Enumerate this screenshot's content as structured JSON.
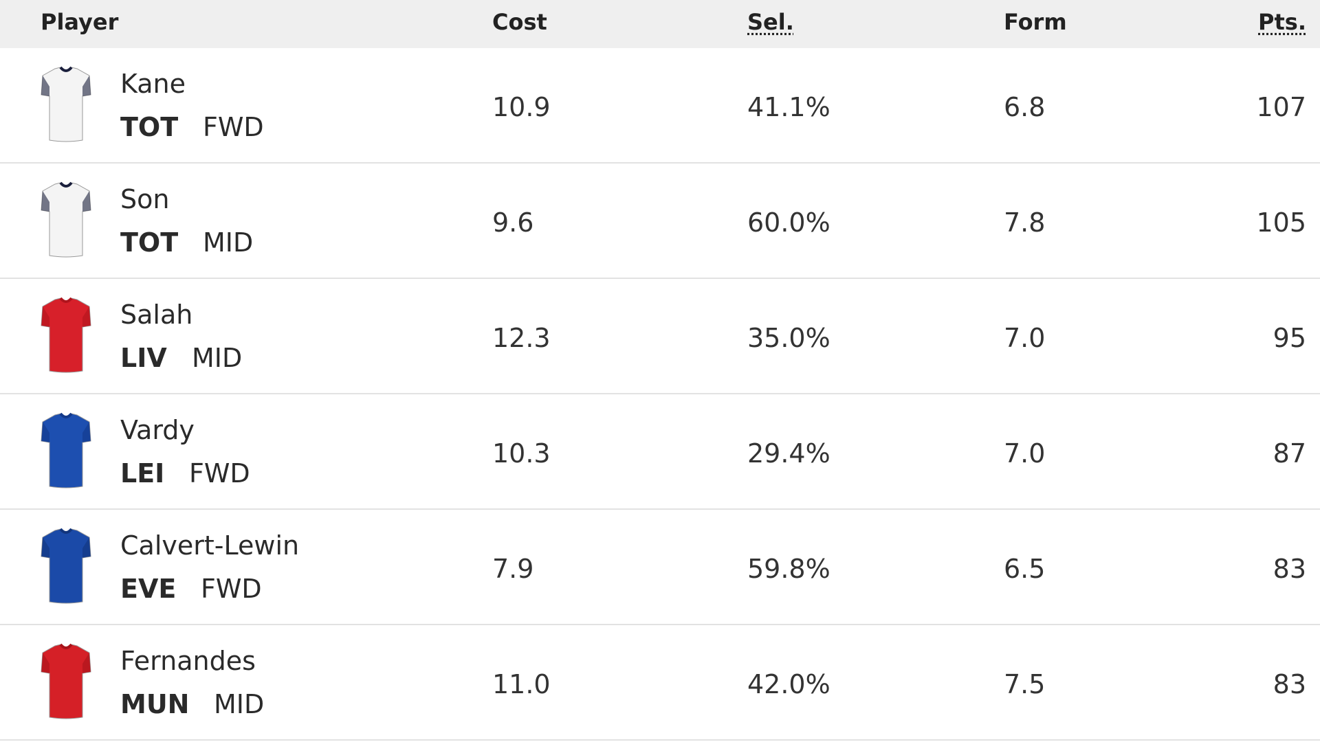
{
  "header": {
    "player": "Player",
    "cost": "Cost",
    "sel": "Sel.",
    "form": "Form",
    "pts": "Pts."
  },
  "rows": [
    {
      "name": "Kane",
      "team": "TOT",
      "position": "FWD",
      "cost": "10.9",
      "sel": "41.1%",
      "form": "6.8",
      "pts": "107"
    },
    {
      "name": "Son",
      "team": "TOT",
      "position": "MID",
      "cost": "9.6",
      "sel": "60.0%",
      "form": "7.8",
      "pts": "105"
    },
    {
      "name": "Salah",
      "team": "LIV",
      "position": "MID",
      "cost": "12.3",
      "sel": "35.0%",
      "form": "7.0",
      "pts": "95"
    },
    {
      "name": "Vardy",
      "team": "LEI",
      "position": "FWD",
      "cost": "10.3",
      "sel": "29.4%",
      "form": "7.0",
      "pts": "87"
    },
    {
      "name": "Calvert-Lewin",
      "team": "EVE",
      "position": "FWD",
      "cost": "7.9",
      "sel": "59.8%",
      "form": "6.5",
      "pts": "83"
    },
    {
      "name": "Fernandes",
      "team": "MUN",
      "position": "MID",
      "cost": "11.0",
      "sel": "42.0%",
      "form": "7.5",
      "pts": "83"
    }
  ]
}
